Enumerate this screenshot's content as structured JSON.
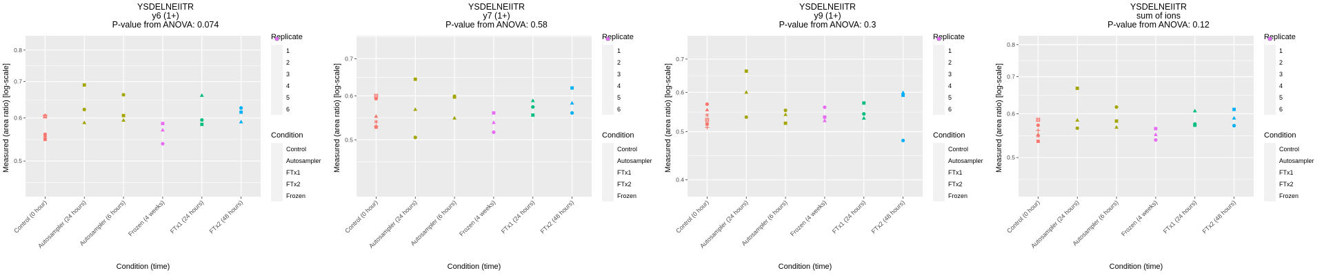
{
  "chart_data": [
    {
      "type": "scatter",
      "title": "YSDELNEIITR",
      "subtitle": "y6 (1+)",
      "caption": "P-value from ANOVA: 0.074",
      "xlabel": "Condition (time)",
      "ylabel": "Measured (area ratio) [log-scale]",
      "yscale": "log",
      "ylim": [
        0.43,
        0.85
      ],
      "yticks": [
        0.5,
        0.6,
        0.7,
        0.8
      ],
      "ytick_labels": [
        "0.5",
        "0.6",
        "0.7",
        "0.8"
      ],
      "categories": [
        "Control (0 hour)",
        "Autosampler (24 hours)",
        "Autosampler (6 hours)",
        "Frozen (4 weeks)",
        "FTx1 (24 hours)",
        "FTx2 (48 hours)"
      ],
      "points": [
        {
          "cat": 0,
          "cond": "Control",
          "rep": 1,
          "y": 0.56
        },
        {
          "cat": 0,
          "cond": "Control",
          "rep": 2,
          "y": 0.557
        },
        {
          "cat": 0,
          "cond": "Control",
          "rep": 3,
          "y": 0.548
        },
        {
          "cat": 0,
          "cond": "Control",
          "rep": 4,
          "y": 0.606
        },
        {
          "cat": 0,
          "cond": "Control",
          "rep": 5,
          "y": 0.604
        },
        {
          "cat": 0,
          "cond": "Control",
          "rep": 6,
          "y": 0.553
        },
        {
          "cat": 1,
          "cond": "Autosampler",
          "rep": 1,
          "y": 0.622
        },
        {
          "cat": 1,
          "cond": "Autosampler",
          "rep": 2,
          "y": 0.588
        },
        {
          "cat": 1,
          "cond": "Autosampler",
          "rep": 3,
          "y": 0.69
        },
        {
          "cat": 2,
          "cond": "Autosampler",
          "rep": 1,
          "y": 0.662
        },
        {
          "cat": 2,
          "cond": "Autosampler",
          "rep": 2,
          "y": 0.594
        },
        {
          "cat": 2,
          "cond": "Autosampler",
          "rep": 3,
          "y": 0.606
        },
        {
          "cat": 3,
          "cond": "Frozen",
          "rep": 1,
          "y": 0.538
        },
        {
          "cat": 3,
          "cond": "Frozen",
          "rep": 2,
          "y": 0.57
        },
        {
          "cat": 3,
          "cond": "Frozen",
          "rep": 3,
          "y": 0.586
        },
        {
          "cat": 4,
          "cond": "FTx1",
          "rep": 1,
          "y": 0.595
        },
        {
          "cat": 4,
          "cond": "FTx1",
          "rep": 2,
          "y": 0.66
        },
        {
          "cat": 4,
          "cond": "FTx1",
          "rep": 3,
          "y": 0.584
        },
        {
          "cat": 5,
          "cond": "FTx2",
          "rep": 1,
          "y": 0.626
        },
        {
          "cat": 5,
          "cond": "FTx2",
          "rep": 2,
          "y": 0.59
        },
        {
          "cat": 5,
          "cond": "FTx2",
          "rep": 3,
          "y": 0.615
        }
      ]
    },
    {
      "type": "scatter",
      "title": "YSDELNEIITR",
      "subtitle": "y7 (1+)",
      "caption": "P-value from ANOVA: 0.58",
      "xlabel": "Condition (time)",
      "ylabel": "Measured (area ratio) [log-scale]",
      "yscale": "log",
      "ylim": [
        0.395,
        0.77
      ],
      "yticks": [
        0.5,
        0.6,
        0.7
      ],
      "ytick_labels": [
        "0.5",
        "0.6",
        "0.7"
      ],
      "categories": [
        "Control (0 hour)",
        "Autosampler (24 hours)",
        "Autosampler (6 hours)",
        "Frozen (4 weeks)",
        "FTx1 (24 hours)",
        "FTx2 (48 hours)"
      ],
      "points": [
        {
          "cat": 0,
          "cond": "Control",
          "rep": 1,
          "y": 0.593
        },
        {
          "cat": 0,
          "cond": "Control",
          "rep": 2,
          "y": 0.551
        },
        {
          "cat": 0,
          "cond": "Control",
          "rep": 3,
          "y": 0.527
        },
        {
          "cat": 0,
          "cond": "Control",
          "rep": 4,
          "y": 0.529
        },
        {
          "cat": 0,
          "cond": "Control",
          "rep": 5,
          "y": 0.6
        },
        {
          "cat": 0,
          "cond": "Control",
          "rep": 6,
          "y": 0.539
        },
        {
          "cat": 1,
          "cond": "Autosampler",
          "rep": 1,
          "y": 0.505
        },
        {
          "cat": 1,
          "cond": "Autosampler",
          "rep": 2,
          "y": 0.567
        },
        {
          "cat": 1,
          "cond": "Autosampler",
          "rep": 3,
          "y": 0.643
        },
        {
          "cat": 2,
          "cond": "Autosampler",
          "rep": 1,
          "y": 0.599
        },
        {
          "cat": 2,
          "cond": "Autosampler",
          "rep": 2,
          "y": 0.547
        },
        {
          "cat": 2,
          "cond": "Autosampler",
          "rep": 3,
          "y": 0.597
        },
        {
          "cat": 3,
          "cond": "Frozen",
          "rep": 1,
          "y": 0.516
        },
        {
          "cat": 3,
          "cond": "Frozen",
          "rep": 2,
          "y": 0.537
        },
        {
          "cat": 3,
          "cond": "Frozen",
          "rep": 3,
          "y": 0.559
        },
        {
          "cat": 4,
          "cond": "FTx1",
          "rep": 1,
          "y": 0.573
        },
        {
          "cat": 4,
          "cond": "FTx1",
          "rep": 2,
          "y": 0.588
        },
        {
          "cat": 4,
          "cond": "FTx1",
          "rep": 3,
          "y": 0.554
        },
        {
          "cat": 5,
          "cond": "FTx2",
          "rep": 1,
          "y": 0.559
        },
        {
          "cat": 5,
          "cond": "FTx2",
          "rep": 2,
          "y": 0.582
        },
        {
          "cat": 5,
          "cond": "FTx2",
          "rep": 3,
          "y": 0.62
        }
      ]
    },
    {
      "type": "scatter",
      "title": "YSDELNEIITR",
      "subtitle": "y9 (1+)",
      "caption": "P-value from ANOVA: 0.3",
      "xlabel": "Condition (time)",
      "ylabel": "Measured (area ratio) [log-scale]",
      "yscale": "log",
      "ylim": [
        0.37,
        0.78
      ],
      "yticks": [
        0.4,
        0.5,
        0.6,
        0.7
      ],
      "ytick_labels": [
        "0.4",
        "0.5",
        "0.6",
        "0.7"
      ],
      "categories": [
        "Control (0 hour)",
        "Autosampler (24 hours)",
        "Autosampler (6 hours)",
        "Frozen (4 weeks)",
        "FTx1 (24 hours)",
        "FTx2 (48 hours)"
      ],
      "points": [
        {
          "cat": 0,
          "cond": "Control",
          "rep": 1,
          "y": 0.568
        },
        {
          "cat": 0,
          "cond": "Control",
          "rep": 2,
          "y": 0.553
        },
        {
          "cat": 0,
          "cond": "Control",
          "rep": 3,
          "y": 0.518
        },
        {
          "cat": 0,
          "cond": "Control",
          "rep": 4,
          "y": 0.51
        },
        {
          "cat": 0,
          "cond": "Control",
          "rep": 5,
          "y": 0.528
        },
        {
          "cat": 0,
          "cond": "Control",
          "rep": 6,
          "y": 0.54
        },
        {
          "cat": 1,
          "cond": "Autosampler",
          "rep": 1,
          "y": 0.535
        },
        {
          "cat": 1,
          "cond": "Autosampler",
          "rep": 2,
          "y": 0.6
        },
        {
          "cat": 1,
          "cond": "Autosampler",
          "rep": 3,
          "y": 0.662
        },
        {
          "cat": 2,
          "cond": "Autosampler",
          "rep": 1,
          "y": 0.552
        },
        {
          "cat": 2,
          "cond": "Autosampler",
          "rep": 2,
          "y": 0.541
        },
        {
          "cat": 2,
          "cond": "Autosampler",
          "rep": 3,
          "y": 0.52
        },
        {
          "cat": 3,
          "cond": "Frozen",
          "rep": 1,
          "y": 0.56
        },
        {
          "cat": 3,
          "cond": "Frozen",
          "rep": 2,
          "y": 0.526
        },
        {
          "cat": 3,
          "cond": "Frozen",
          "rep": 3,
          "y": 0.535
        },
        {
          "cat": 4,
          "cond": "FTx1",
          "rep": 1,
          "y": 0.543
        },
        {
          "cat": 4,
          "cond": "FTx1",
          "rep": 2,
          "y": 0.532
        },
        {
          "cat": 4,
          "cond": "FTx1",
          "rep": 3,
          "y": 0.571
        },
        {
          "cat": 5,
          "cond": "FTx2",
          "rep": 1,
          "y": 0.48
        },
        {
          "cat": 5,
          "cond": "FTx2",
          "rep": 2,
          "y": 0.599
        },
        {
          "cat": 5,
          "cond": "FTx2",
          "rep": 3,
          "y": 0.592
        }
      ]
    },
    {
      "type": "scatter",
      "title": "YSDELNEIITR",
      "subtitle": "sum of ions",
      "caption": "P-value from ANOVA: 0.12",
      "xlabel": "Condition (time)",
      "ylabel": "Measured (area ratio) [log-scale]",
      "yscale": "log",
      "ylim": [
        0.425,
        0.83
      ],
      "yticks": [
        0.5,
        0.6,
        0.7,
        0.8
      ],
      "ytick_labels": [
        "0.5",
        "0.6",
        "0.7",
        "0.8"
      ],
      "categories": [
        "Control (0 hour)",
        "Autosampler (24 hours)",
        "Autosampler (6 hours)",
        "Frozen (4 weeks)",
        "FTx1 (24 hours)",
        "FTx2 (48 hours)"
      ],
      "points": [
        {
          "cat": 0,
          "cond": "Control",
          "rep": 1,
          "y": 0.572
        },
        {
          "cat": 0,
          "cond": "Control",
          "rep": 2,
          "y": 0.55
        },
        {
          "cat": 0,
          "cond": "Control",
          "rep": 3,
          "y": 0.535
        },
        {
          "cat": 0,
          "cond": "Control",
          "rep": 4,
          "y": 0.56
        },
        {
          "cat": 0,
          "cond": "Control",
          "rep": 5,
          "y": 0.585
        },
        {
          "cat": 0,
          "cond": "Control",
          "rep": 6,
          "y": 0.547
        },
        {
          "cat": 1,
          "cond": "Autosampler",
          "rep": 1,
          "y": 0.565
        },
        {
          "cat": 1,
          "cond": "Autosampler",
          "rep": 2,
          "y": 0.584
        },
        {
          "cat": 1,
          "cond": "Autosampler",
          "rep": 3,
          "y": 0.667
        },
        {
          "cat": 2,
          "cond": "Autosampler",
          "rep": 1,
          "y": 0.617
        },
        {
          "cat": 2,
          "cond": "Autosampler",
          "rep": 2,
          "y": 0.567
        },
        {
          "cat": 2,
          "cond": "Autosampler",
          "rep": 3,
          "y": 0.582
        },
        {
          "cat": 3,
          "cond": "Frozen",
          "rep": 1,
          "y": 0.538
        },
        {
          "cat": 3,
          "cond": "Frozen",
          "rep": 2,
          "y": 0.55
        },
        {
          "cat": 3,
          "cond": "Frozen",
          "rep": 3,
          "y": 0.564
        },
        {
          "cat": 4,
          "cond": "FTx1",
          "rep": 1,
          "y": 0.575
        },
        {
          "cat": 4,
          "cond": "FTx1",
          "rep": 2,
          "y": 0.607
        },
        {
          "cat": 4,
          "cond": "FTx1",
          "rep": 3,
          "y": 0.572
        },
        {
          "cat": 5,
          "cond": "FTx2",
          "rep": 1,
          "y": 0.571
        },
        {
          "cat": 5,
          "cond": "FTx2",
          "rep": 2,
          "y": 0.589
        },
        {
          "cat": 5,
          "cond": "FTx2",
          "rep": 3,
          "y": 0.611
        }
      ]
    }
  ],
  "legend": {
    "replicate_title": "Replicate",
    "replicates": [
      {
        "label": "1",
        "shape": "circle"
      },
      {
        "label": "2",
        "shape": "triangle"
      },
      {
        "label": "3",
        "shape": "square"
      },
      {
        "label": "4",
        "shape": "plus"
      },
      {
        "label": "5",
        "shape": "boxed-x"
      },
      {
        "label": "6",
        "shape": "asterisk"
      }
    ],
    "condition_title": "Condition",
    "conditions": [
      {
        "label": "Control",
        "color": "#F8766D"
      },
      {
        "label": "Autosampler",
        "color": "#A3A500"
      },
      {
        "label": "FTx1",
        "color": "#00BF7D"
      },
      {
        "label": "FTx2",
        "color": "#00B0F6"
      },
      {
        "label": "Frozen",
        "color": "#E76BF3"
      }
    ]
  },
  "colors": {
    "panel_bg": "#EBEBEB",
    "grid": "#FFFFFF",
    "legend_key_bg": "#F2F2F2"
  }
}
